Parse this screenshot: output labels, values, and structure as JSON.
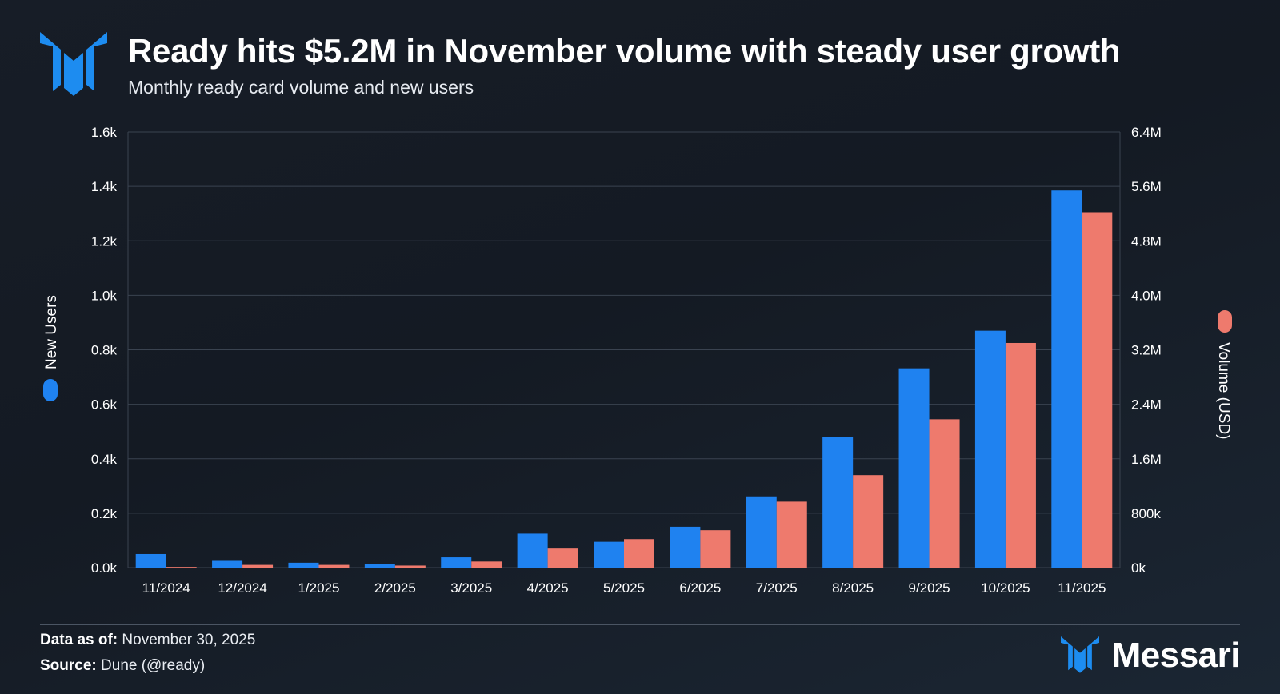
{
  "header": {
    "title": "Ready hits $5.2M in November volume with steady user growth",
    "subtitle": "Monthly ready card volume and new users"
  },
  "footer": {
    "data_as_of_label": "Data as of:",
    "data_as_of_value": "November 30, 2025",
    "source_label": "Source:",
    "source_value": "Dune (@ready)",
    "brand": "Messari"
  },
  "colors": {
    "new_users": "#1f82f0",
    "volume": "#ee7a6d",
    "logo": "#1d8cf0"
  },
  "chart_data": {
    "type": "bar",
    "categories": [
      "11/2024",
      "12/2024",
      "1/2025",
      "2/2025",
      "3/2025",
      "4/2025",
      "5/2025",
      "6/2025",
      "7/2025",
      "8/2025",
      "9/2025",
      "10/2025",
      "11/2025"
    ],
    "series": [
      {
        "name": "New Users",
        "axis": "left",
        "values": [
          50,
          25,
          18,
          12,
          38,
          125,
          95,
          150,
          262,
          480,
          732,
          870,
          1385
        ]
      },
      {
        "name": "Volume (USD)",
        "axis": "right",
        "values": [
          10000,
          40000,
          40000,
          30000,
          90000,
          280000,
          420000,
          550000,
          970000,
          1360000,
          2180000,
          3300000,
          5220000
        ]
      }
    ],
    "left_axis": {
      "label": "New Users",
      "ylim": [
        0,
        1600
      ],
      "ticks": [
        0,
        200,
        400,
        600,
        800,
        1000,
        1200,
        1400,
        1600
      ],
      "tick_labels": [
        "0.0k",
        "0.2k",
        "0.4k",
        "0.6k",
        "0.8k",
        "1.0k",
        "1.2k",
        "1.4k",
        "1.6k"
      ]
    },
    "right_axis": {
      "label": "Volume (USD)",
      "ylim": [
        0,
        6400000
      ],
      "ticks": [
        0,
        800000,
        1600000,
        2400000,
        3200000,
        4000000,
        4800000,
        5600000,
        6400000
      ],
      "tick_labels": [
        "0k",
        "800k",
        "1.6M",
        "2.4M",
        "3.2M",
        "4.0M",
        "4.8M",
        "5.6M",
        "6.4M"
      ]
    },
    "grid": true,
    "legend": "axis-labels"
  }
}
